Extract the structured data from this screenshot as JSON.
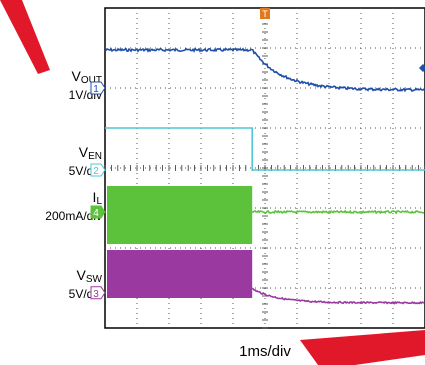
{
  "watermark_color": "#e0182a",
  "time_scale": "1ms/div",
  "trigger_marker": {
    "color": "#e07820",
    "symbol": "T"
  },
  "channels": [
    {
      "id": "1",
      "name": "V",
      "sub": "OUT",
      "scale": "1V/div",
      "color": "#1f4fa8"
    },
    {
      "id": "2",
      "name": "V",
      "sub": "EN",
      "scale": "5V/div",
      "color": "#4fc7d6"
    },
    {
      "id": "4",
      "name": "I",
      "sub": "L",
      "scale": "200mA/div",
      "color": "#5cc23c"
    },
    {
      "id": "3",
      "name": "V",
      "sub": "SW",
      "scale": "5V/div",
      "color": "#9a3aa0"
    }
  ],
  "chart_data": {
    "type": "line",
    "title": "",
    "xlabel": "1ms/div",
    "x_divisions": 10,
    "y_divisions": 8,
    "trigger_time_div": 5,
    "series": [
      {
        "name": "VOUT",
        "channel": "1",
        "before": 1.0,
        "after": 0.15,
        "event_div": 4.6,
        "shape": "decay"
      },
      {
        "name": "VEN",
        "channel": "2",
        "before": 1.0,
        "after": 0.0,
        "event_div": 4.6,
        "shape": "step"
      },
      {
        "name": "IL",
        "channel": "4",
        "before": "switching",
        "after": 0.0,
        "event_div": 4.6,
        "shape": "burst"
      },
      {
        "name": "VSW",
        "channel": "3",
        "before": "switching",
        "after": 0.05,
        "event_div": 4.6,
        "shape": "burst-decay"
      }
    ]
  }
}
